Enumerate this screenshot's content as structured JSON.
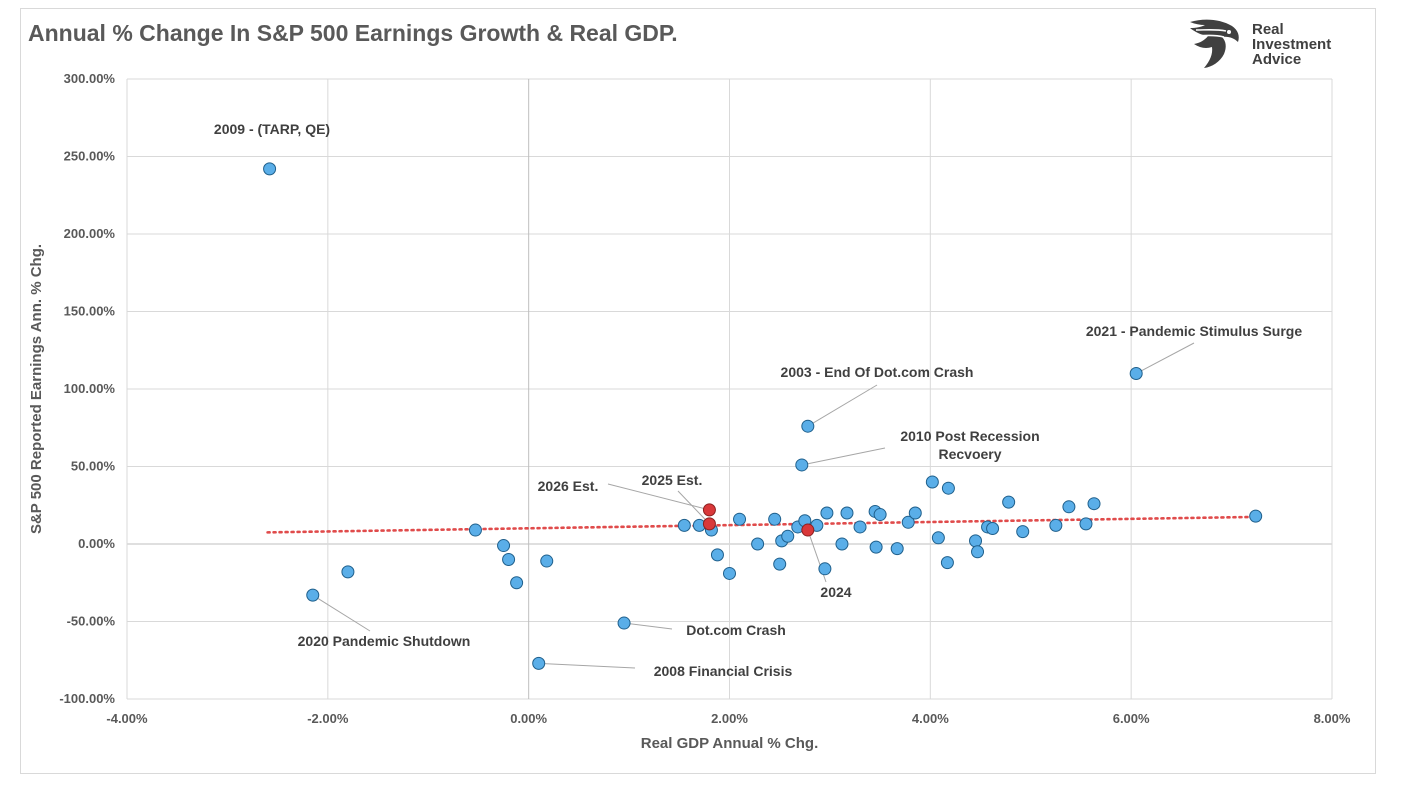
{
  "chart_data": {
    "type": "scatter",
    "title": "Annual % Change In S&P 500 Earnings Growth & Real GDP.",
    "xlabel": "Real GDP Annual % Chg.",
    "ylabel": "S&P 500 Reported Earnings Ann. % Chg.",
    "xlim": [
      -4,
      8
    ],
    "ylim": [
      -100,
      300
    ],
    "x_ticks": [
      -4,
      -2,
      0,
      2,
      4,
      6,
      8
    ],
    "y_ticks": [
      -100,
      -50,
      0,
      50,
      100,
      150,
      200,
      250,
      300
    ],
    "x_tick_labels": [
      "-4.00%",
      "-2.00%",
      "0.00%",
      "2.00%",
      "4.00%",
      "6.00%",
      "8.00%"
    ],
    "y_tick_labels": [
      "-100.00%",
      "-50.00%",
      "0.00%",
      "50.00%",
      "100.00%",
      "150.00%",
      "200.00%",
      "250.00%",
      "300.00%"
    ],
    "grid": true,
    "colors": {
      "point": "#5aaee8",
      "point_edge": "#1f5f8b",
      "highlight": "#d9383a",
      "trend": "#e04b4b",
      "grid": "#d9d9d9",
      "zero_axis": "#bfbfbf"
    },
    "trendline": {
      "x": [
        -2.6,
        7.25
      ],
      "y": [
        7.5,
        17.5
      ]
    },
    "points": [
      [
        -2.58,
        242
      ],
      [
        -2.15,
        -33
      ],
      [
        -1.8,
        -18
      ],
      [
        -0.53,
        9
      ],
      [
        -0.25,
        -1
      ],
      [
        -0.2,
        -10
      ],
      [
        -0.12,
        -25
      ],
      [
        0.18,
        -11
      ],
      [
        0.1,
        -77
      ],
      [
        0.95,
        -51
      ],
      [
        1.55,
        12
      ],
      [
        1.7,
        12
      ],
      [
        1.82,
        9
      ],
      [
        1.88,
        -7
      ],
      [
        2.0,
        -19
      ],
      [
        2.1,
        16
      ],
      [
        2.28,
        0
      ],
      [
        2.45,
        16
      ],
      [
        2.5,
        -13
      ],
      [
        2.52,
        2
      ],
      [
        2.58,
        5
      ],
      [
        2.68,
        11
      ],
      [
        2.72,
        51
      ],
      [
        2.75,
        15
      ],
      [
        2.78,
        76
      ],
      [
        2.87,
        12
      ],
      [
        2.95,
        -16
      ],
      [
        2.97,
        20
      ],
      [
        3.12,
        0
      ],
      [
        3.17,
        20
      ],
      [
        3.3,
        11
      ],
      [
        3.45,
        21
      ],
      [
        3.46,
        -2
      ],
      [
        3.5,
        19
      ],
      [
        3.67,
        -3
      ],
      [
        3.78,
        14
      ],
      [
        3.85,
        20
      ],
      [
        4.02,
        40
      ],
      [
        4.08,
        4
      ],
      [
        4.17,
        -12
      ],
      [
        4.18,
        36
      ],
      [
        4.45,
        2
      ],
      [
        4.47,
        -5
      ],
      [
        4.57,
        11
      ],
      [
        4.62,
        10
      ],
      [
        4.78,
        27
      ],
      [
        4.92,
        8
      ],
      [
        5.25,
        12
      ],
      [
        5.38,
        24
      ],
      [
        5.55,
        13
      ],
      [
        5.63,
        26
      ],
      [
        6.05,
        110
      ],
      [
        7.24,
        18
      ]
    ],
    "highlighted_points": [
      [
        1.8,
        22
      ],
      [
        1.8,
        13
      ],
      [
        2.78,
        9
      ]
    ],
    "annotations": [
      {
        "label": "2009 - (TARP, QE)",
        "point": [
          -2.58,
          242
        ]
      },
      {
        "label": "2021 - Pandemic Stimulus Surge",
        "point": [
          6.05,
          110
        ]
      },
      {
        "label": "2003 - End Of Dot.com Crash",
        "point": [
          2.78,
          76
        ]
      },
      {
        "label": "2010 Post Recession",
        "label2": "Recvoery",
        "point": [
          2.72,
          51
        ]
      },
      {
        "label": "2026 Est.",
        "point": [
          1.8,
          22
        ]
      },
      {
        "label": "2025 Est.",
        "point": [
          1.8,
          13
        ]
      },
      {
        "label": "2024",
        "point": [
          2.78,
          9
        ]
      },
      {
        "label": "2020 Pandemic Shutdown",
        "point": [
          -2.15,
          -33
        ]
      },
      {
        "label": "Dot.com Crash",
        "point": [
          0.95,
          -51
        ]
      },
      {
        "label": "2008 Financial Crisis",
        "point": [
          0.1,
          -77
        ]
      }
    ]
  },
  "branding": {
    "logo_line1": "Real",
    "logo_line2": "Investment",
    "logo_line3": "Advice",
    "logo_icon": "eagle-head-icon"
  }
}
